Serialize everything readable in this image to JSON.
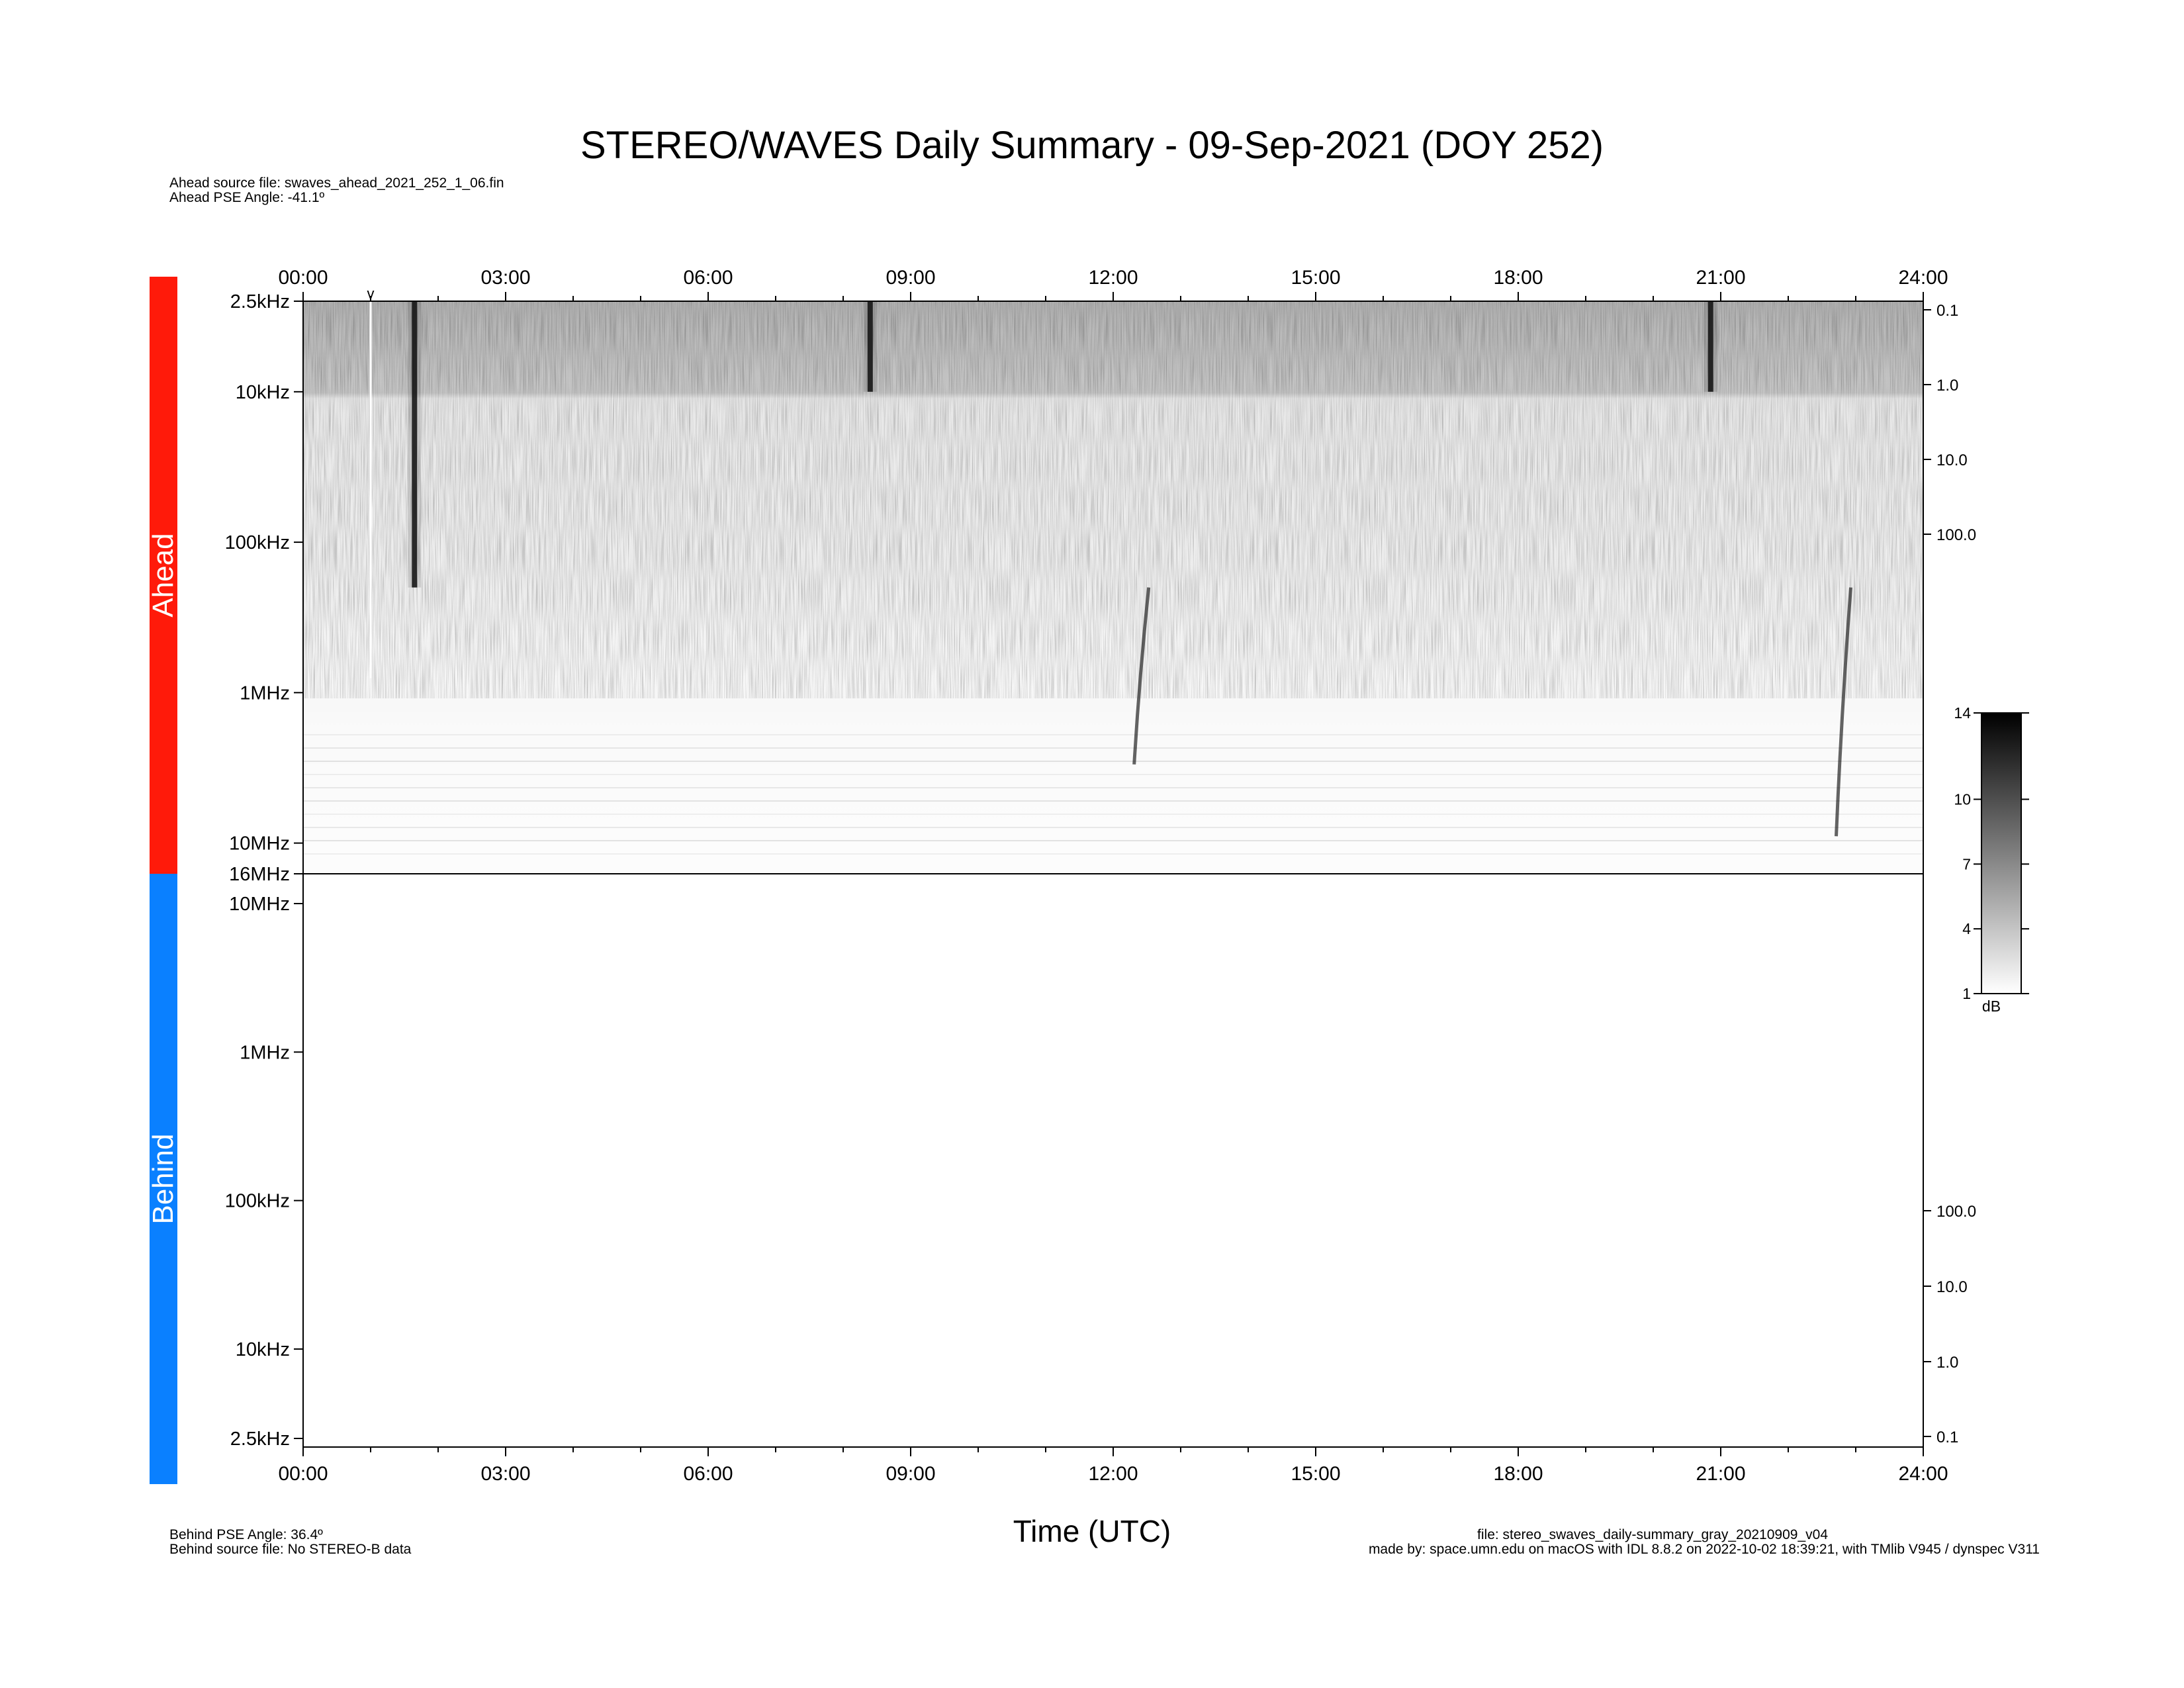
{
  "title": "STEREO/WAVES Daily Summary - 09-Sep-2021 (DOY 252)",
  "ahead_info": {
    "source_file": "Ahead source file: swaves_ahead_2021_252_1_06.fin",
    "pse_angle": "Ahead PSE Angle:  -41.1º"
  },
  "behind_info": {
    "pse_angle": "Behind PSE Angle:   36.4º",
    "source_file": "Behind source file: No STEREO-B data"
  },
  "footer": {
    "file": "file: stereo_swaves_daily-summary_gray_20210909_v04",
    "made_by": "made by: space.umn.edu on macOS with IDL 8.8.2 on 2022-10-02 18:39:21, with TMlib V945 / dynspec V311"
  },
  "panels": {
    "ahead_label": "Ahead",
    "behind_label": "Behind",
    "ahead_color": "#ff1a0a",
    "behind_color": "#0a80ff"
  },
  "chart_data": {
    "type": "heatmap",
    "xlabel": "Time (UTC)",
    "x_ticks": [
      "00:00",
      "03:00",
      "06:00",
      "09:00",
      "12:00",
      "15:00",
      "18:00",
      "21:00",
      "24:00"
    ],
    "xlim_hours": [
      0,
      24
    ],
    "ahead_panel": {
      "y_scale": "log",
      "y_ticks": [
        "2.5kHz",
        "10kHz",
        "100kHz",
        "1MHz",
        "10MHz",
        "16MHz"
      ],
      "y_tick_freqs_khz": [
        2.5,
        10,
        100,
        1000,
        10000,
        16000
      ],
      "y_direction": "frequency increases downward",
      "right_ticks": [
        "0.1",
        "1.0",
        "10.0",
        "100.0"
      ],
      "marker": "v",
      "marker_time_hours": 1.0,
      "features": [
        {
          "kind": "burst",
          "time_hours": 1.65,
          "freq_range_khz": [
            2.5,
            200
          ]
        },
        {
          "kind": "burst",
          "time_hours": 8.4,
          "freq_range_khz": [
            2.5,
            10
          ]
        },
        {
          "kind": "drifting burst",
          "time_hours": 12.35,
          "freq_range_khz": [
            200,
            3000
          ]
        },
        {
          "kind": "drifting burst",
          "time_hours": 22.75,
          "freq_range_khz": [
            200,
            9000
          ]
        },
        {
          "kind": "burst",
          "time_hours": 20.85,
          "freq_range_khz": [
            2.5,
            10
          ]
        }
      ]
    },
    "behind_panel": {
      "y_scale": "log",
      "y_ticks": [
        "10MHz",
        "1MHz",
        "100kHz",
        "10kHz",
        "2.5kHz"
      ],
      "y_tick_freqs_khz": [
        10000,
        1000,
        100,
        10,
        2.5
      ],
      "y_direction": "frequency increases upward",
      "right_ticks": [
        "100.0",
        "10.0",
        "1.0",
        "0.1"
      ],
      "data": "none"
    },
    "colorbar": {
      "ticks": [
        14,
        10,
        7,
        4,
        1
      ],
      "range": [
        1,
        14
      ],
      "unit": "dB",
      "colormap": "gray (white = low, black = high)"
    }
  }
}
